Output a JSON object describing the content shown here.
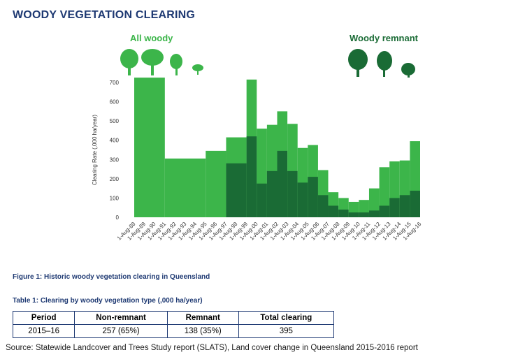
{
  "page_title": "WOODY VEGETATION CLEARING",
  "chart_data": {
    "type": "bar",
    "ylabel": "Clearing Rate (,000 ha/year)",
    "ylim": [
      0,
      700
    ],
    "yticks": [
      0,
      100,
      200,
      300,
      400,
      500,
      600,
      700
    ],
    "legend": {
      "all_woody": "All woody",
      "remnant": "Woody remnant"
    },
    "colors": {
      "all_woody": "#3cb54a",
      "remnant": "#1a6b35"
    },
    "categories": [
      "1-Aug-88",
      "1-Aug-89",
      "1-Aug-90",
      "1-Aug-91",
      "1-Aug-92",
      "1-Aug-93",
      "1-Aug-94",
      "1-Aug-95",
      "1-Aug-96",
      "1-Aug-97",
      "1-Aug-98",
      "1-Aug-99",
      "1-Aug-00",
      "1-Aug-01",
      "1-Aug-02",
      "1-Aug-03",
      "1-Aug-04",
      "1-Aug-05",
      "1-Aug-06",
      "1-Aug-07",
      "1-Aug-08",
      "1-Aug-09",
      "1-Aug-10",
      "1-Aug-11",
      "1-Aug-12",
      "1-Aug-13",
      "1-Aug-14",
      "1-Aug-15",
      "1-Aug-16"
    ],
    "periods": [
      {
        "start": 0,
        "end": 3,
        "all_woody": 725,
        "remnant": null
      },
      {
        "start": 3,
        "end": 7,
        "all_woody": 305,
        "remnant": null
      },
      {
        "start": 7,
        "end": 9,
        "all_woody": 345,
        "remnant": null
      },
      {
        "start": 9,
        "end": 11,
        "all_woody": 415,
        "remnant": 280
      },
      {
        "start": 11,
        "end": 12,
        "all_woody": 715,
        "remnant": 420
      },
      {
        "start": 12,
        "end": 13,
        "all_woody": 460,
        "remnant": 175
      },
      {
        "start": 13,
        "end": 14,
        "all_woody": 480,
        "remnant": 240
      },
      {
        "start": 14,
        "end": 15,
        "all_woody": 550,
        "remnant": 345
      },
      {
        "start": 15,
        "end": 16,
        "all_woody": 485,
        "remnant": 240
      },
      {
        "start": 16,
        "end": 17,
        "all_woody": 360,
        "remnant": 180
      },
      {
        "start": 17,
        "end": 18,
        "all_woody": 375,
        "remnant": 210
      },
      {
        "start": 18,
        "end": 19,
        "all_woody": 245,
        "remnant": 115
      },
      {
        "start": 19,
        "end": 20,
        "all_woody": 130,
        "remnant": 60
      },
      {
        "start": 20,
        "end": 21,
        "all_woody": 100,
        "remnant": 40
      },
      {
        "start": 21,
        "end": 22,
        "all_woody": 80,
        "remnant": 25
      },
      {
        "start": 22,
        "end": 23,
        "all_woody": 90,
        "remnant": 25
      },
      {
        "start": 23,
        "end": 24,
        "all_woody": 150,
        "remnant": 35
      },
      {
        "start": 24,
        "end": 25,
        "all_woody": 260,
        "remnant": 60
      },
      {
        "start": 25,
        "end": 26,
        "all_woody": 290,
        "remnant": 100
      },
      {
        "start": 26,
        "end": 27,
        "all_woody": 295,
        "remnant": 115
      },
      {
        "start": 27,
        "end": 28,
        "all_woody": 395,
        "remnant": 138
      }
    ]
  },
  "figure_caption": "Figure 1: Historic woody vegetation clearing in Queensland",
  "table_caption": "Table 1: Clearing by woody vegetation type (,000 ha/year)",
  "table": {
    "headers": [
      "Period",
      "Non-remnant",
      "Remnant",
      "Total clearing"
    ],
    "rows": [
      [
        "2015–16",
        "257 (65%)",
        "138 (35%)",
        "395"
      ]
    ]
  },
  "source": "Source: Statewide Landcover and Trees Study report (SLATS), Land cover change in Queensland 2015-2016 report"
}
